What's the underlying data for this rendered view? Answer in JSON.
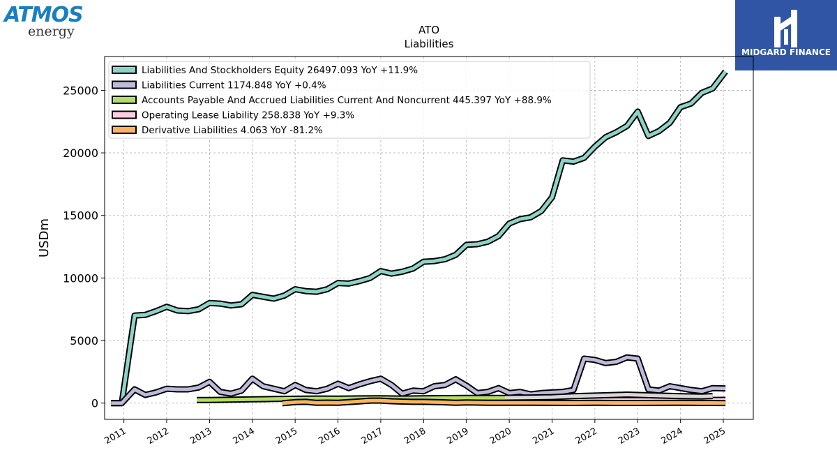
{
  "logos": {
    "company_wordmark": "ATMOS",
    "company_subtext": "energy",
    "publisher": "MIDGARD FINANCE"
  },
  "chart_data": {
    "type": "line",
    "title": "ATO",
    "subtitle": "Liabilities",
    "ylabel": "USDm",
    "xlabel": "",
    "xlim": [
      2010.55,
      2025.7
    ],
    "ylim": [
      -1300,
      27700
    ],
    "yticks": [
      0,
      5000,
      10000,
      15000,
      20000,
      25000
    ],
    "ytick_labels": [
      "0",
      "5000",
      "10000",
      "15000",
      "20000",
      "25000"
    ],
    "xticks": [
      2011,
      2012,
      2013,
      2014,
      2015,
      2016,
      2017,
      2018,
      2019,
      2020,
      2021,
      2022,
      2023,
      2024,
      2025
    ],
    "xtick_labels": [
      "2011",
      "2012",
      "2013",
      "2014",
      "2015",
      "2016",
      "2017",
      "2018",
      "2019",
      "2020",
      "2021",
      "2022",
      "2023",
      "2024",
      "2025"
    ],
    "grid": true,
    "legend_position": "top-left",
    "series": [
      {
        "name": "Liabilities And Stockholders Equity",
        "legend_label": "Liabilities And Stockholders Equity  26497.093 YoY +11.9%",
        "color": "#8dd3c7",
        "points": [
          [
            2010.7,
            0
          ],
          [
            2010.95,
            0
          ],
          [
            2011.25,
            7000
          ],
          [
            2011.5,
            7050
          ],
          [
            2011.75,
            7350
          ],
          [
            2012.0,
            7700
          ],
          [
            2012.25,
            7400
          ],
          [
            2012.5,
            7350
          ],
          [
            2012.75,
            7500
          ],
          [
            2013.0,
            8000
          ],
          [
            2013.25,
            7950
          ],
          [
            2013.5,
            7800
          ],
          [
            2013.75,
            7900
          ],
          [
            2014.0,
            8650
          ],
          [
            2014.25,
            8500
          ],
          [
            2014.5,
            8350
          ],
          [
            2014.75,
            8600
          ],
          [
            2015.0,
            9100
          ],
          [
            2015.25,
            8950
          ],
          [
            2015.5,
            8900
          ],
          [
            2015.75,
            9100
          ],
          [
            2016.0,
            9600
          ],
          [
            2016.25,
            9550
          ],
          [
            2016.5,
            9750
          ],
          [
            2016.75,
            10000
          ],
          [
            2017.0,
            10550
          ],
          [
            2017.25,
            10350
          ],
          [
            2017.5,
            10500
          ],
          [
            2017.75,
            10750
          ],
          [
            2018.0,
            11300
          ],
          [
            2018.25,
            11350
          ],
          [
            2018.5,
            11500
          ],
          [
            2018.75,
            11850
          ],
          [
            2019.0,
            12650
          ],
          [
            2019.25,
            12700
          ],
          [
            2019.5,
            12900
          ],
          [
            2019.75,
            13350
          ],
          [
            2020.0,
            14350
          ],
          [
            2020.25,
            14700
          ],
          [
            2020.5,
            14850
          ],
          [
            2020.75,
            15350
          ],
          [
            2021.0,
            16450
          ],
          [
            2021.25,
            19400
          ],
          [
            2021.5,
            19300
          ],
          [
            2021.75,
            19600
          ],
          [
            2022.0,
            20500
          ],
          [
            2022.25,
            21250
          ],
          [
            2022.5,
            21650
          ],
          [
            2022.75,
            22150
          ],
          [
            2023.0,
            23300
          ],
          [
            2023.25,
            21350
          ],
          [
            2023.5,
            21750
          ],
          [
            2023.75,
            22400
          ],
          [
            2024.0,
            23650
          ],
          [
            2024.25,
            23950
          ],
          [
            2024.5,
            24800
          ],
          [
            2024.75,
            25150
          ],
          [
            2025.05,
            26497
          ]
        ]
      },
      {
        "name": "Liabilities Current",
        "legend_label": "Liabilities Current  1174.848 YoY +0.4%",
        "color": "#bebada",
        "points": [
          [
            2010.7,
            0
          ],
          [
            2010.95,
            0
          ],
          [
            2011.25,
            1100
          ],
          [
            2011.5,
            650
          ],
          [
            2011.75,
            850
          ],
          [
            2012.0,
            1150
          ],
          [
            2012.25,
            1100
          ],
          [
            2012.5,
            1100
          ],
          [
            2012.75,
            1250
          ],
          [
            2013.0,
            1700
          ],
          [
            2013.25,
            900
          ],
          [
            2013.5,
            750
          ],
          [
            2013.75,
            1000
          ],
          [
            2014.0,
            1950
          ],
          [
            2014.25,
            1350
          ],
          [
            2014.5,
            1150
          ],
          [
            2014.75,
            950
          ],
          [
            2015.0,
            1450
          ],
          [
            2015.25,
            1050
          ],
          [
            2015.5,
            950
          ],
          [
            2015.75,
            1150
          ],
          [
            2016.0,
            1550
          ],
          [
            2016.25,
            1200
          ],
          [
            2016.5,
            1500
          ],
          [
            2016.75,
            1750
          ],
          [
            2017.0,
            1950
          ],
          [
            2017.25,
            1450
          ],
          [
            2017.5,
            750
          ],
          [
            2017.75,
            1000
          ],
          [
            2018.0,
            950
          ],
          [
            2018.25,
            1350
          ],
          [
            2018.5,
            1450
          ],
          [
            2018.75,
            1900
          ],
          [
            2019.0,
            1400
          ],
          [
            2019.25,
            800
          ],
          [
            2019.5,
            900
          ],
          [
            2019.75,
            1200
          ],
          [
            2020.0,
            800
          ],
          [
            2020.25,
            900
          ],
          [
            2020.5,
            700
          ],
          [
            2020.75,
            800
          ],
          [
            2021.0,
            850
          ],
          [
            2021.25,
            900
          ],
          [
            2021.5,
            1050
          ],
          [
            2021.75,
            3550
          ],
          [
            2022.0,
            3450
          ],
          [
            2022.25,
            3200
          ],
          [
            2022.5,
            3300
          ],
          [
            2022.75,
            3650
          ],
          [
            2023.0,
            3550
          ],
          [
            2023.25,
            1100
          ],
          [
            2023.5,
            1000
          ],
          [
            2023.75,
            1350
          ],
          [
            2024.0,
            1200
          ],
          [
            2024.25,
            1050
          ],
          [
            2024.5,
            950
          ],
          [
            2024.75,
            1200
          ],
          [
            2025.05,
            1175
          ]
        ]
      },
      {
        "name": "Accounts Payable And Accrued Liabilities Current And Noncurrent",
        "legend_label": "Accounts Payable And Accrued Liabilities Current And Noncurrent  445.397 YoY +88.9%",
        "color": "#b3de69",
        "points": [
          [
            2012.7,
            250
          ],
          [
            2013.0,
            250
          ],
          [
            2013.5,
            270
          ],
          [
            2014.0,
            300
          ],
          [
            2014.5,
            330
          ],
          [
            2015.0,
            350
          ],
          [
            2015.5,
            370
          ],
          [
            2016.0,
            360
          ],
          [
            2016.5,
            380
          ],
          [
            2017.0,
            390
          ],
          [
            2017.5,
            370
          ],
          [
            2018.0,
            390
          ],
          [
            2018.5,
            400
          ],
          [
            2019.0,
            420
          ],
          [
            2019.5,
            410
          ],
          [
            2019.9,
            420
          ]
        ]
      },
      {
        "name": "Operating Lease Liability",
        "legend_label": "Operating Lease Liability  258.838 YoY +9.3%",
        "color": "#fccde5",
        "points": [
          [
            2019.9,
            220
          ],
          [
            2020.5,
            210
          ],
          [
            2021.0,
            220
          ],
          [
            2021.5,
            230
          ],
          [
            2022.0,
            240
          ],
          [
            2022.5,
            250
          ],
          [
            2023.0,
            250
          ],
          [
            2023.5,
            250
          ],
          [
            2024.0,
            240
          ],
          [
            2024.5,
            255
          ],
          [
            2025.05,
            259
          ]
        ]
      },
      {
        "name": "Derivative Liabilities",
        "legend_label": "Derivative Liabilities  4.063 YoY -81.2%",
        "color": "#fdb462",
        "points": [
          [
            2014.7,
            -10
          ],
          [
            2015.0,
            80
          ],
          [
            2015.25,
            100
          ],
          [
            2015.5,
            20
          ],
          [
            2015.75,
            40
          ],
          [
            2016.0,
            20
          ],
          [
            2016.25,
            80
          ],
          [
            2016.5,
            140
          ],
          [
            2016.75,
            200
          ],
          [
            2017.0,
            200
          ],
          [
            2017.25,
            150
          ],
          [
            2017.5,
            120
          ],
          [
            2017.75,
            100
          ],
          [
            2018.0,
            100
          ],
          [
            2018.25,
            80
          ],
          [
            2018.5,
            60
          ],
          [
            2018.75,
            30
          ],
          [
            2019.0,
            50
          ],
          [
            2019.25,
            40
          ],
          [
            2019.5,
            30
          ],
          [
            2019.75,
            30
          ],
          [
            2020.0,
            20
          ],
          [
            2020.5,
            20
          ],
          [
            2021.0,
            15
          ],
          [
            2021.5,
            10
          ],
          [
            2022.0,
            20
          ],
          [
            2022.5,
            10
          ],
          [
            2023.0,
            10
          ],
          [
            2023.5,
            15
          ],
          [
            2024.0,
            20
          ],
          [
            2024.5,
            10
          ],
          [
            2025.05,
            4
          ]
        ]
      },
      {
        "name": "",
        "color": "#d8d8d8",
        "points": [
          [
            2019.9,
            430
          ],
          [
            2020.5,
            450
          ],
          [
            2021.0,
            480
          ],
          [
            2021.5,
            550
          ],
          [
            2022.0,
            600
          ],
          [
            2022.5,
            650
          ],
          [
            2022.75,
            680
          ],
          [
            2023.0,
            650
          ],
          [
            2023.5,
            600
          ],
          [
            2024.0,
            550
          ],
          [
            2024.5,
            530
          ],
          [
            2024.75,
            560
          ]
        ]
      }
    ]
  }
}
